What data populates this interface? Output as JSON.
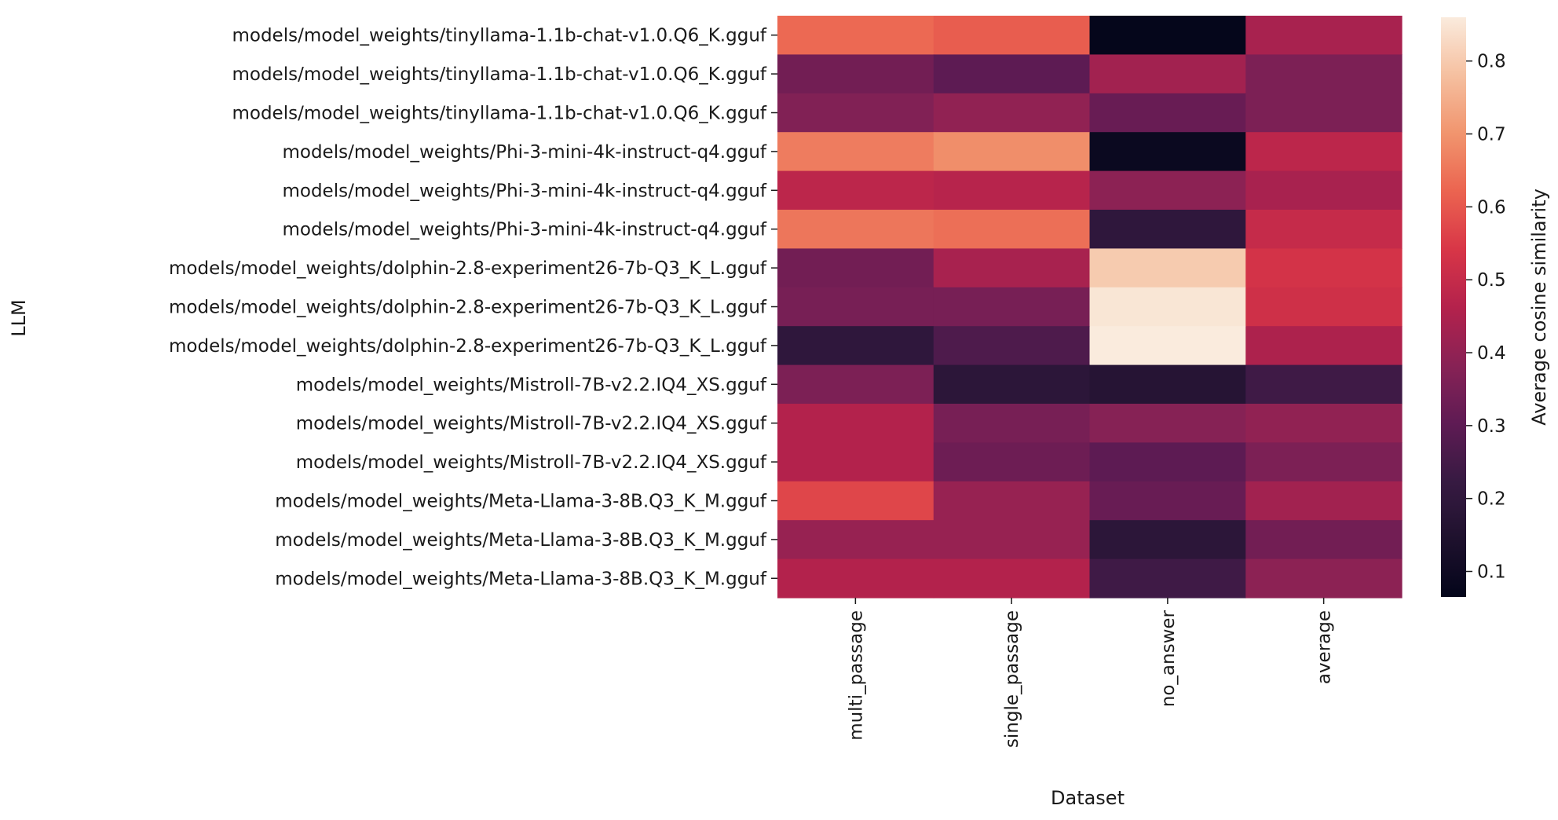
{
  "chart_data": {
    "type": "heatmap",
    "xlabel": "Dataset",
    "ylabel": "LLM",
    "colorbar_label": "Average cosine similarity",
    "colormap": "rocket",
    "vmin": 0.065,
    "vmax": 0.86,
    "colorbar_ticks": [
      "0.1",
      "0.2",
      "0.3",
      "0.4",
      "0.5",
      "0.6",
      "0.7",
      "0.8"
    ],
    "columns": [
      "multi_passage",
      "single_passage",
      "no_answer",
      "average"
    ],
    "rows": [
      "models/model_weights/tinyllama-1.1b-chat-v1.0.Q6_K.gguf",
      "models/model_weights/tinyllama-1.1b-chat-v1.0.Q6_K.gguf",
      "models/model_weights/tinyllama-1.1b-chat-v1.0.Q6_K.gguf",
      "models/model_weights/Phi-3-mini-4k-instruct-q4.gguf",
      "models/model_weights/Phi-3-mini-4k-instruct-q4.gguf",
      "models/model_weights/Phi-3-mini-4k-instruct-q4.gguf",
      "models/model_weights/dolphin-2.8-experiment26-7b-Q3_K_L.gguf",
      "models/model_weights/dolphin-2.8-experiment26-7b-Q3_K_L.gguf",
      "models/model_weights/dolphin-2.8-experiment26-7b-Q3_K_L.gguf",
      "models/model_weights/Mistroll-7B-v2.2.IQ4_XS.gguf",
      "models/model_weights/Mistroll-7B-v2.2.IQ4_XS.gguf",
      "models/model_weights/Mistroll-7B-v2.2.IQ4_XS.gguf",
      "models/model_weights/Meta-Llama-3-8B.Q3_K_M.gguf",
      "models/model_weights/Meta-Llama-3-8B.Q3_K_M.gguf",
      "models/model_weights/Meta-Llama-3-8B.Q3_K_M.gguf"
    ],
    "values": [
      [
        0.63,
        0.61,
        0.07,
        0.44
      ],
      [
        0.34,
        0.3,
        0.43,
        0.36
      ],
      [
        0.37,
        0.4,
        0.32,
        0.36
      ],
      [
        0.66,
        0.69,
        0.09,
        0.48
      ],
      [
        0.48,
        0.47,
        0.39,
        0.44
      ],
      [
        0.65,
        0.64,
        0.2,
        0.5
      ],
      [
        0.34,
        0.44,
        0.8,
        0.53
      ],
      [
        0.35,
        0.35,
        0.85,
        0.52
      ],
      [
        0.2,
        0.27,
        0.86,
        0.45
      ],
      [
        0.36,
        0.19,
        0.17,
        0.24
      ],
      [
        0.46,
        0.35,
        0.38,
        0.4
      ],
      [
        0.46,
        0.33,
        0.3,
        0.36
      ],
      [
        0.57,
        0.41,
        0.32,
        0.43
      ],
      [
        0.41,
        0.41,
        0.19,
        0.34
      ],
      [
        0.46,
        0.46,
        0.24,
        0.39
      ]
    ]
  }
}
